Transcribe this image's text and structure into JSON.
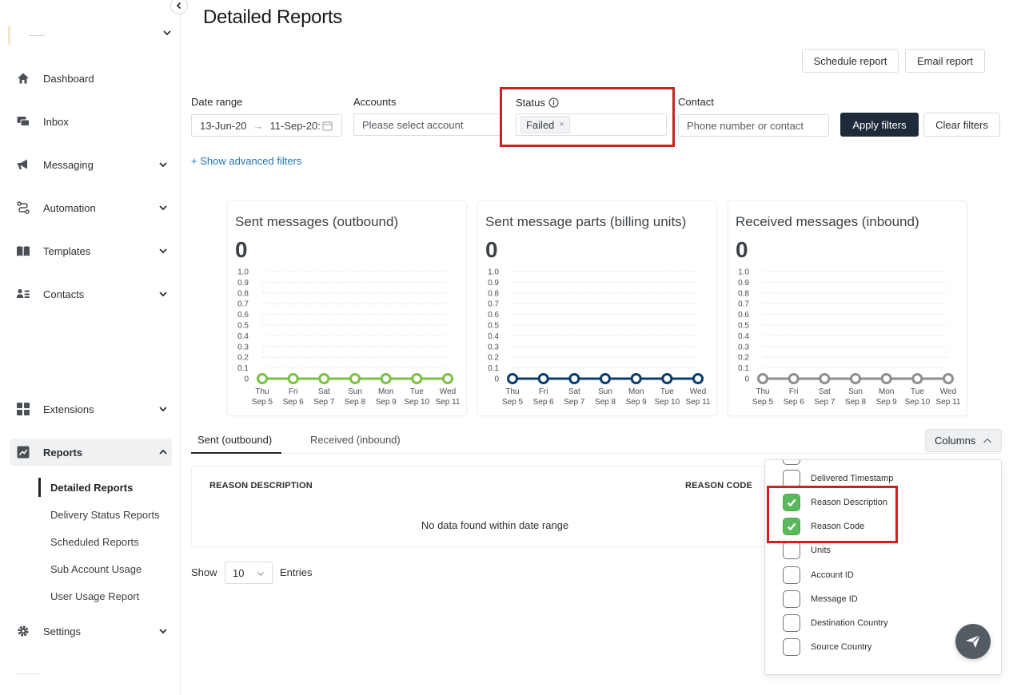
{
  "page": {
    "title": "Detailed Reports"
  },
  "sidebar": {
    "items": [
      {
        "label": "Dashboard",
        "icon": "home-icon"
      },
      {
        "label": "Inbox",
        "icon": "inbox-icon"
      },
      {
        "label": "Messaging",
        "icon": "megaphone-icon"
      },
      {
        "label": "Automation",
        "icon": "automation-icon"
      },
      {
        "label": "Templates",
        "icon": "book-icon"
      },
      {
        "label": "Contacts",
        "icon": "contacts-icon"
      },
      {
        "label": "Extensions",
        "icon": "grid-icon"
      },
      {
        "label": "Reports",
        "icon": "chart-icon"
      },
      {
        "label": "Settings",
        "icon": "gear-icon"
      }
    ],
    "report_subitems": [
      "Detailed Reports",
      "Delivery Status Reports",
      "Scheduled Reports",
      "Sub Account Usage",
      "User Usage Report"
    ]
  },
  "toolbar": {
    "schedule_label": "Schedule report",
    "email_label": "Email report"
  },
  "filters": {
    "date_label": "Date range",
    "date_start": "13-Jun-20",
    "date_arrow": "→",
    "date_end": "11-Sep-20:",
    "accounts_label": "Accounts",
    "accounts_placeholder": "Please select account",
    "status_label": "Status",
    "status_tag": "Failed",
    "status_tag_remove": "×",
    "contact_label": "Contact",
    "contact_placeholder": "Phone number or contact",
    "apply_label": "Apply filters",
    "clear_label": "Clear filters",
    "advanced_link": "+ Show advanced filters"
  },
  "cards": [
    {
      "title": "Sent messages (outbound)",
      "value": "0"
    },
    {
      "title": "Sent message parts (billing units)",
      "value": "0"
    },
    {
      "title": "Received messages (inbound)",
      "value": "0"
    }
  ],
  "chart_data": [
    {
      "type": "line",
      "title": "Sent messages (outbound)",
      "categories": [
        "Thu Sep 5",
        "Fri Sep 6",
        "Sat Sep 7",
        "Sun Sep 8",
        "Mon Sep 9",
        "Tue Sep 10",
        "Wed Sep 11"
      ],
      "series": [
        {
          "values": [
            0,
            0,
            0,
            0,
            0,
            0,
            0
          ],
          "color": "#7ac143"
        }
      ],
      "yticks": [
        "0",
        "0.1",
        "0.2",
        "0.3",
        "0.4",
        "0.5",
        "0.6",
        "0.7",
        "0.8",
        "0.9",
        "1.0"
      ],
      "ylim": [
        0,
        1
      ],
      "grid": true
    },
    {
      "type": "line",
      "title": "Sent message parts (billing units)",
      "categories": [
        "Thu Sep 5",
        "Fri Sep 6",
        "Sat Sep 7",
        "Sun Sep 8",
        "Mon Sep 9",
        "Tue Sep 10",
        "Wed Sep 11"
      ],
      "series": [
        {
          "values": [
            0,
            0,
            0,
            0,
            0,
            0,
            0
          ],
          "color": "#0c3c6e"
        }
      ],
      "yticks": [
        "0",
        "0.1",
        "0.2",
        "0.3",
        "0.4",
        "0.5",
        "0.6",
        "0.7",
        "0.8",
        "0.9",
        "1.0"
      ],
      "ylim": [
        0,
        1
      ],
      "grid": true
    },
    {
      "type": "line",
      "title": "Received messages (inbound)",
      "categories": [
        "Thu Sep 5",
        "Fri Sep 6",
        "Sat Sep 7",
        "Sun Sep 8",
        "Mon Sep 9",
        "Tue Sep 10",
        "Wed Sep 11"
      ],
      "series": [
        {
          "values": [
            0,
            0,
            0,
            0,
            0,
            0,
            0
          ],
          "color": "#8e8e8e"
        }
      ],
      "yticks": [
        "0",
        "0.1",
        "0.2",
        "0.3",
        "0.4",
        "0.5",
        "0.6",
        "0.7",
        "0.8",
        "0.9",
        "1.0"
      ],
      "ylim": [
        0,
        1
      ],
      "grid": true
    }
  ],
  "tabs": [
    {
      "label": "Sent (outbound)",
      "active": true
    },
    {
      "label": "Received (inbound)",
      "active": false
    }
  ],
  "table": {
    "columns": [
      "REASON DESCRIPTION",
      "REASON CODE"
    ],
    "empty_text": "No data found within date range"
  },
  "pagination": {
    "show_label": "Show",
    "page_size": "10",
    "entries_label": "Entries"
  },
  "columns_menu": {
    "button_label": "Columns",
    "options": [
      {
        "label": "Delivered Timestamp",
        "checked": false
      },
      {
        "label": "Reason Description",
        "checked": true
      },
      {
        "label": "Reason Code",
        "checked": true
      },
      {
        "label": "Units",
        "checked": false
      },
      {
        "label": "Account ID",
        "checked": false
      },
      {
        "label": "Message ID",
        "checked": false
      },
      {
        "label": "Destination Country",
        "checked": false
      },
      {
        "label": "Source Country",
        "checked": false
      }
    ]
  },
  "colors": {
    "highlight": "#d21f1f",
    "primary_button": "#1f2b3a",
    "link": "#1b75bc",
    "check": "#5cb85c"
  }
}
